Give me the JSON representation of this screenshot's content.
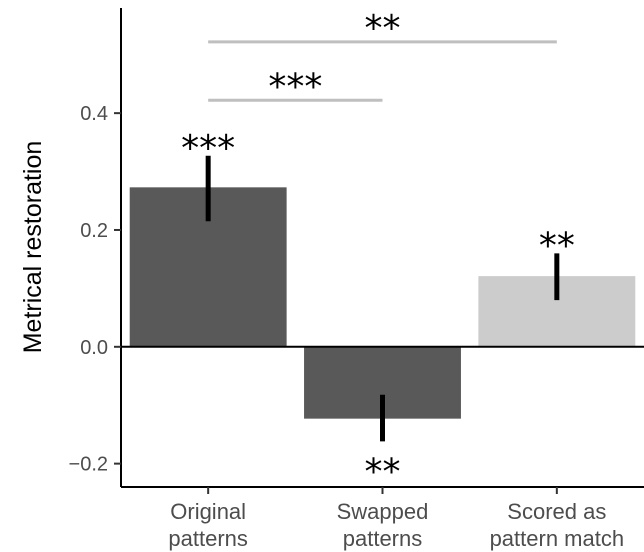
{
  "chart_data": {
    "type": "bar",
    "title": "",
    "xlabel": "",
    "ylabel": "Metrical restoration",
    "ylim": [
      -0.24,
      0.58
    ],
    "yticks": [
      -0.2,
      0.0,
      0.2,
      0.4
    ],
    "ytick_labels": [
      "−0.2",
      "0.0",
      "0.2",
      "0.4"
    ],
    "categories": [
      {
        "line1": "Original",
        "line2": "patterns"
      },
      {
        "line1": "Swapped",
        "line2": "patterns"
      },
      {
        "line1": "Scored as",
        "line2": "pattern match"
      }
    ],
    "values": [
      0.273,
      -0.123,
      0.121
    ],
    "error_low": [
      0.215,
      -0.162,
      0.08
    ],
    "error_high": [
      0.327,
      -0.082,
      0.16
    ],
    "bar_colors": [
      "#595959",
      "#595959",
      "#cccccc"
    ],
    "bar_significance": [
      "***",
      "**",
      "**"
    ],
    "comparisons": [
      {
        "from": 0,
        "to": 2,
        "label": "**",
        "y": 0.522
      },
      {
        "from": 0,
        "to": 1,
        "label": "***",
        "y": 0.422
      }
    ],
    "zero_line": true,
    "grid": false,
    "legend": "none"
  }
}
